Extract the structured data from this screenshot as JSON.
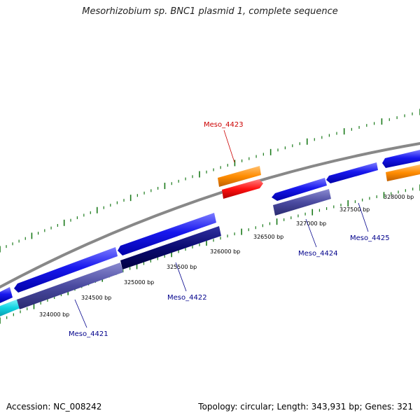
{
  "title": "Mesorhizobium sp. BNC1 plasmid 1, complete sequence",
  "footer": {
    "accession": "Accession: NC_008242",
    "summary": "Topology: circular; Length: 343,931 bp; Genes: 321"
  },
  "colors": {
    "backbone": "#888888",
    "ticks": "#1a7a1a",
    "cds_forward": "#1010e6",
    "cds_reverse": "#4a4aa0",
    "gene_teal": "#12d4e2",
    "gene_orange": "#ff8c00",
    "gene_red": "#ff1010",
    "label_blue": "#00008b",
    "label_red": "#cc0000"
  },
  "tick_labels": [
    {
      "text": "324000 bp",
      "bp": 324000
    },
    {
      "text": "324500 bp",
      "bp": 324500
    },
    {
      "text": "325000 bp",
      "bp": 325000
    },
    {
      "text": "325500 bp",
      "bp": 325500
    },
    {
      "text": "326000 bp",
      "bp": 326000
    },
    {
      "text": "326500 bp",
      "bp": 326500
    },
    {
      "text": "327000 bp",
      "bp": 327000
    },
    {
      "text": "327500 bp",
      "bp": 327500
    },
    {
      "text": "328000 bp",
      "bp": 328000
    }
  ],
  "genes": [
    {
      "label": "Meso_4421",
      "color_key": "label_blue"
    },
    {
      "label": "Meso_4422",
      "color_key": "label_blue"
    },
    {
      "label": "Meso_4423",
      "color_key": "label_red"
    },
    {
      "label": "Meso_4424",
      "color_key": "label_blue"
    },
    {
      "label": "Meso_4425",
      "color_key": "label_blue"
    }
  ]
}
